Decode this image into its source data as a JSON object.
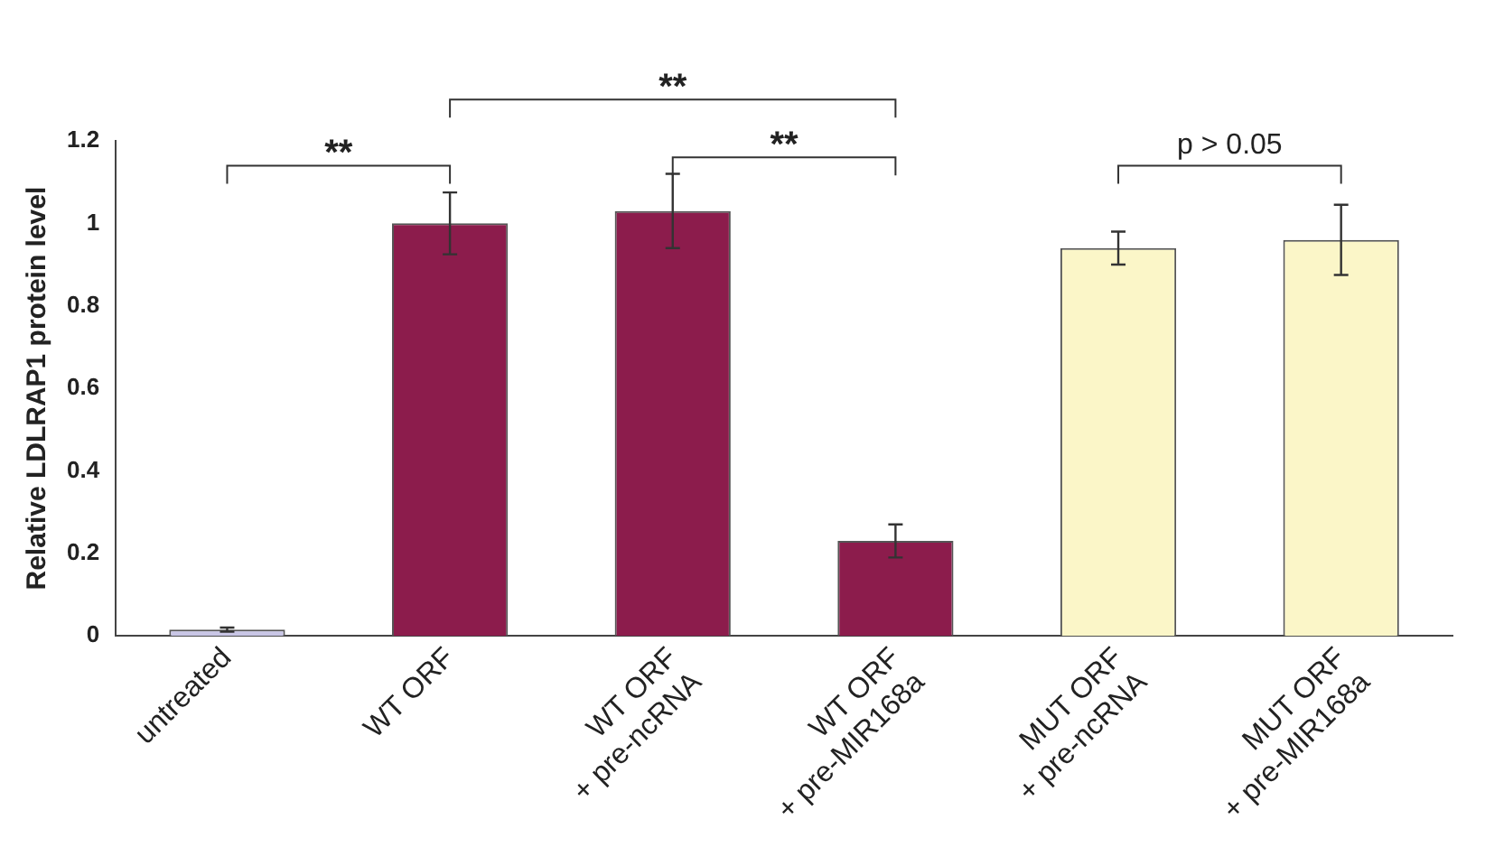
{
  "chart_data": {
    "type": "bar",
    "ylabel": "Relative LDLRAP1 protein level",
    "categories": [
      "untreated",
      "WT ORF",
      "WT ORF\n+ pre-ncRNA",
      "WT ORF\n+ pre-MIR168a",
      "MUT ORF\n+ pre-ncRNA",
      "MUT ORF\n+ pre-MIR168a"
    ],
    "values": [
      0.015,
      1.0,
      1.03,
      0.23,
      0.94,
      0.96
    ],
    "errors": [
      0.005,
      0.075,
      0.09,
      0.04,
      0.04,
      0.085
    ],
    "colors": [
      "#c9c6e6",
      "#8c1c4c",
      "#8c1c4c",
      "#8c1c4c",
      "#fbf6c8",
      "#fbf6c8"
    ],
    "ylim": [
      0,
      1.2
    ],
    "yticks": [
      0,
      {
        "value": 0.2,
        "label": "0.2"
      },
      {
        "value": 0.4,
        "label": "0.4"
      },
      {
        "value": 0.6,
        "label": "0.6"
      },
      {
        "value": 0.8,
        "label": "0.8"
      },
      1,
      {
        "value": 1.2,
        "label": "1.2"
      }
    ],
    "grid": false,
    "legend": false,
    "annotations": [
      "**",
      "**",
      "**",
      "p > 0.05"
    ]
  }
}
